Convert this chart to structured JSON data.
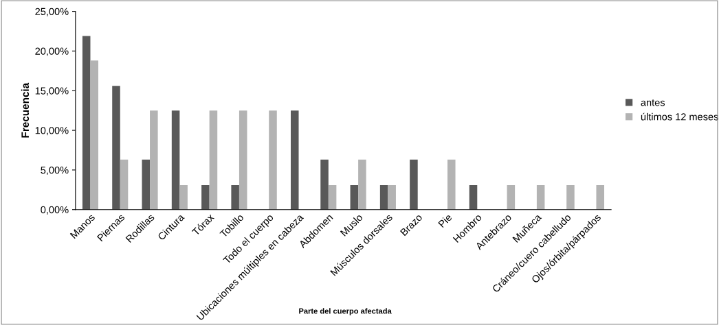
{
  "chart_data": {
    "type": "bar",
    "xlabel": "Parte del cuerpo afectada",
    "ylabel": "Frecuencia",
    "categories": [
      "Manos",
      "Piernas",
      "Rodillas",
      "Cintura",
      "Tórax",
      "Tobillo",
      "Todo el cuerpo",
      "Ubicaciones múltiples en cabeza",
      "Abdomen",
      "Muslo",
      "Músculos dorsales",
      "Brazo",
      "Pie",
      "Hombro",
      "Antebrazo",
      "Muñeca",
      "Cráneo/cuero cabelludo",
      "Ojos/órbita/párpados"
    ],
    "series": [
      {
        "name": "antes",
        "color": "#595959",
        "values": [
          21.9,
          15.6,
          6.3,
          12.5,
          3.1,
          3.1,
          0,
          12.5,
          6.3,
          3.1,
          3.1,
          6.3,
          0,
          3.1,
          0,
          0,
          0,
          0
        ]
      },
      {
        "name": "últimos 12 meses",
        "color": "#b3b3b3",
        "values": [
          18.8,
          6.3,
          12.5,
          3.1,
          12.5,
          12.5,
          12.5,
          0,
          3.1,
          6.3,
          3.1,
          0,
          6.3,
          0,
          3.1,
          3.1,
          3.1,
          3.1
        ]
      }
    ],
    "ylim": [
      0,
      25
    ],
    "yticks": [
      {
        "value": 0,
        "label": "0,00%"
      },
      {
        "value": 5,
        "label": "5,00%"
      },
      {
        "value": 10,
        "label": "10,00%"
      },
      {
        "value": 15,
        "label": "15,00%"
      },
      {
        "value": 20,
        "label": "20,00%"
      },
      {
        "value": 25,
        "label": "25,00%"
      }
    ],
    "grid": false,
    "legend": "right"
  }
}
